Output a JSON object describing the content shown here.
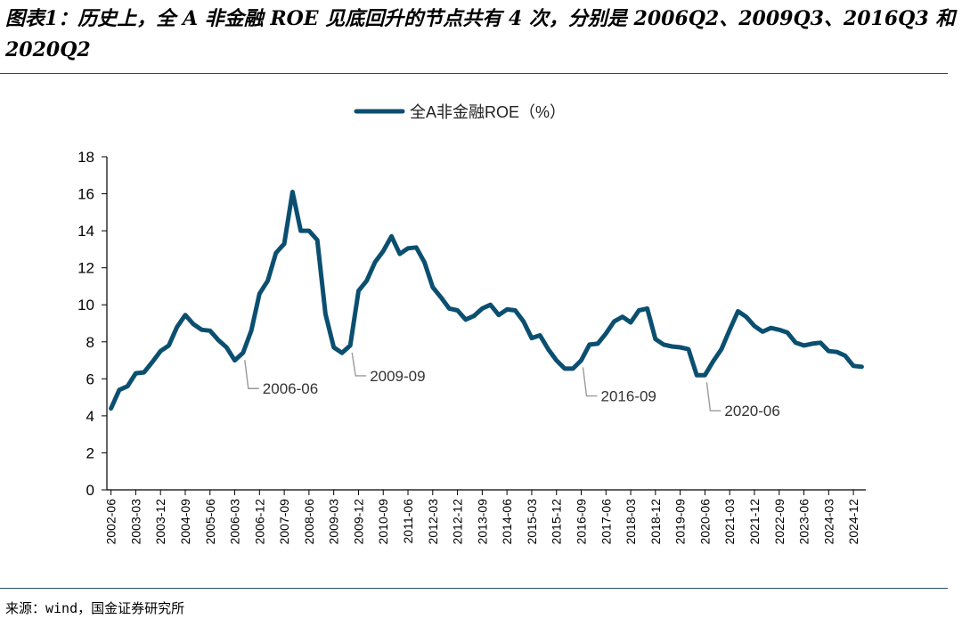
{
  "title": "图表1：历史上，全 A 非金融 ROE 见底回升的节点共有 4 次，分别是 2006Q2、2009Q3、2016Q3 和 2020Q2",
  "source": "来源：wind，国金证券研究所",
  "colors": {
    "series": "#0b4f70",
    "rule": "#1f4e6e",
    "annotation": "#9a9a9a"
  },
  "chart_data": {
    "type": "line",
    "legend": "top-center",
    "grid": false,
    "ylim": [
      0,
      18
    ],
    "y_ticks": [
      "0",
      "2",
      "4",
      "6",
      "8",
      "10",
      "12",
      "14",
      "16",
      "18"
    ],
    "x_tick_labels": [
      "2002-06",
      "2003-03",
      "2003-12",
      "2004-09",
      "2005-06",
      "2006-03",
      "2006-12",
      "2007-09",
      "2008-06",
      "2009-03",
      "2009-12",
      "2010-09",
      "2011-06",
      "2012-03",
      "2012-12",
      "2013-09",
      "2014-06",
      "2015-03",
      "2015-12",
      "2016-09",
      "2017-06",
      "2018-03",
      "2018-12",
      "2019-09",
      "2020-06",
      "2021-03",
      "2021-12",
      "2022-09",
      "2023-06",
      "2024-03",
      "2024-12"
    ],
    "series": [
      {
        "name": "全A非金融ROE（%）",
        "x": [
          "2002-06",
          "2002-09",
          "2002-12",
          "2003-03",
          "2003-06",
          "2003-09",
          "2003-12",
          "2004-03",
          "2004-06",
          "2004-09",
          "2004-12",
          "2005-03",
          "2005-06",
          "2005-09",
          "2005-12",
          "2006-03",
          "2006-06",
          "2006-09",
          "2006-12",
          "2007-03",
          "2007-06",
          "2007-09",
          "2007-12",
          "2008-03",
          "2008-06",
          "2008-09",
          "2008-12",
          "2009-03",
          "2009-06",
          "2009-09",
          "2009-12",
          "2010-03",
          "2010-06",
          "2010-09",
          "2010-12",
          "2011-03",
          "2011-06",
          "2011-09",
          "2011-12",
          "2012-03",
          "2012-06",
          "2012-09",
          "2012-12",
          "2013-03",
          "2013-06",
          "2013-09",
          "2013-12",
          "2014-03",
          "2014-06",
          "2014-09",
          "2014-12",
          "2015-03",
          "2015-06",
          "2015-09",
          "2015-12",
          "2016-03",
          "2016-06",
          "2016-09",
          "2016-12",
          "2017-03",
          "2017-06",
          "2017-09",
          "2017-12",
          "2018-03",
          "2018-06",
          "2018-09",
          "2018-12",
          "2019-03",
          "2019-06",
          "2019-09",
          "2019-12",
          "2020-03",
          "2020-06",
          "2020-09",
          "2020-12",
          "2021-03",
          "2021-06",
          "2021-09",
          "2021-12",
          "2022-03",
          "2022-06",
          "2022-09",
          "2022-12",
          "2023-03",
          "2023-06",
          "2023-09",
          "2023-12",
          "2024-03",
          "2024-06",
          "2024-09",
          "2024-12",
          "2025-03"
        ],
        "values": [
          4.4,
          5.4,
          5.6,
          6.3,
          6.35,
          6.9,
          7.5,
          7.8,
          8.8,
          9.45,
          8.95,
          8.65,
          8.6,
          8.1,
          7.7,
          7.0,
          7.4,
          8.6,
          10.6,
          11.3,
          12.8,
          13.3,
          16.1,
          14.0,
          14.0,
          13.5,
          9.5,
          7.7,
          7.4,
          7.8,
          10.75,
          11.3,
          12.3,
          12.9,
          13.7,
          12.75,
          13.05,
          13.1,
          12.3,
          10.95,
          10.4,
          9.8,
          9.7,
          9.2,
          9.4,
          9.8,
          10.0,
          9.45,
          9.75,
          9.7,
          9.1,
          8.2,
          8.35,
          7.6,
          7.0,
          6.55,
          6.55,
          7.0,
          7.85,
          7.9,
          8.45,
          9.1,
          9.35,
          9.05,
          9.7,
          9.8,
          8.15,
          7.85,
          7.75,
          7.7,
          7.6,
          6.2,
          6.2,
          6.95,
          7.6,
          8.65,
          9.65,
          9.35,
          8.85,
          8.55,
          8.75,
          8.65,
          8.5,
          7.95,
          7.8,
          7.9,
          7.95,
          7.5,
          7.45,
          7.25,
          6.7,
          6.65
        ]
      }
    ],
    "annotations": [
      {
        "label": "2006-06",
        "x": "2006-06",
        "y": 7.4
      },
      {
        "label": "2009-09",
        "x": "2009-09",
        "y": 7.8
      },
      {
        "label": "2016-09",
        "x": "2016-09",
        "y": 7.0
      },
      {
        "label": "2020-06",
        "x": "2020-06",
        "y": 6.2
      }
    ]
  }
}
